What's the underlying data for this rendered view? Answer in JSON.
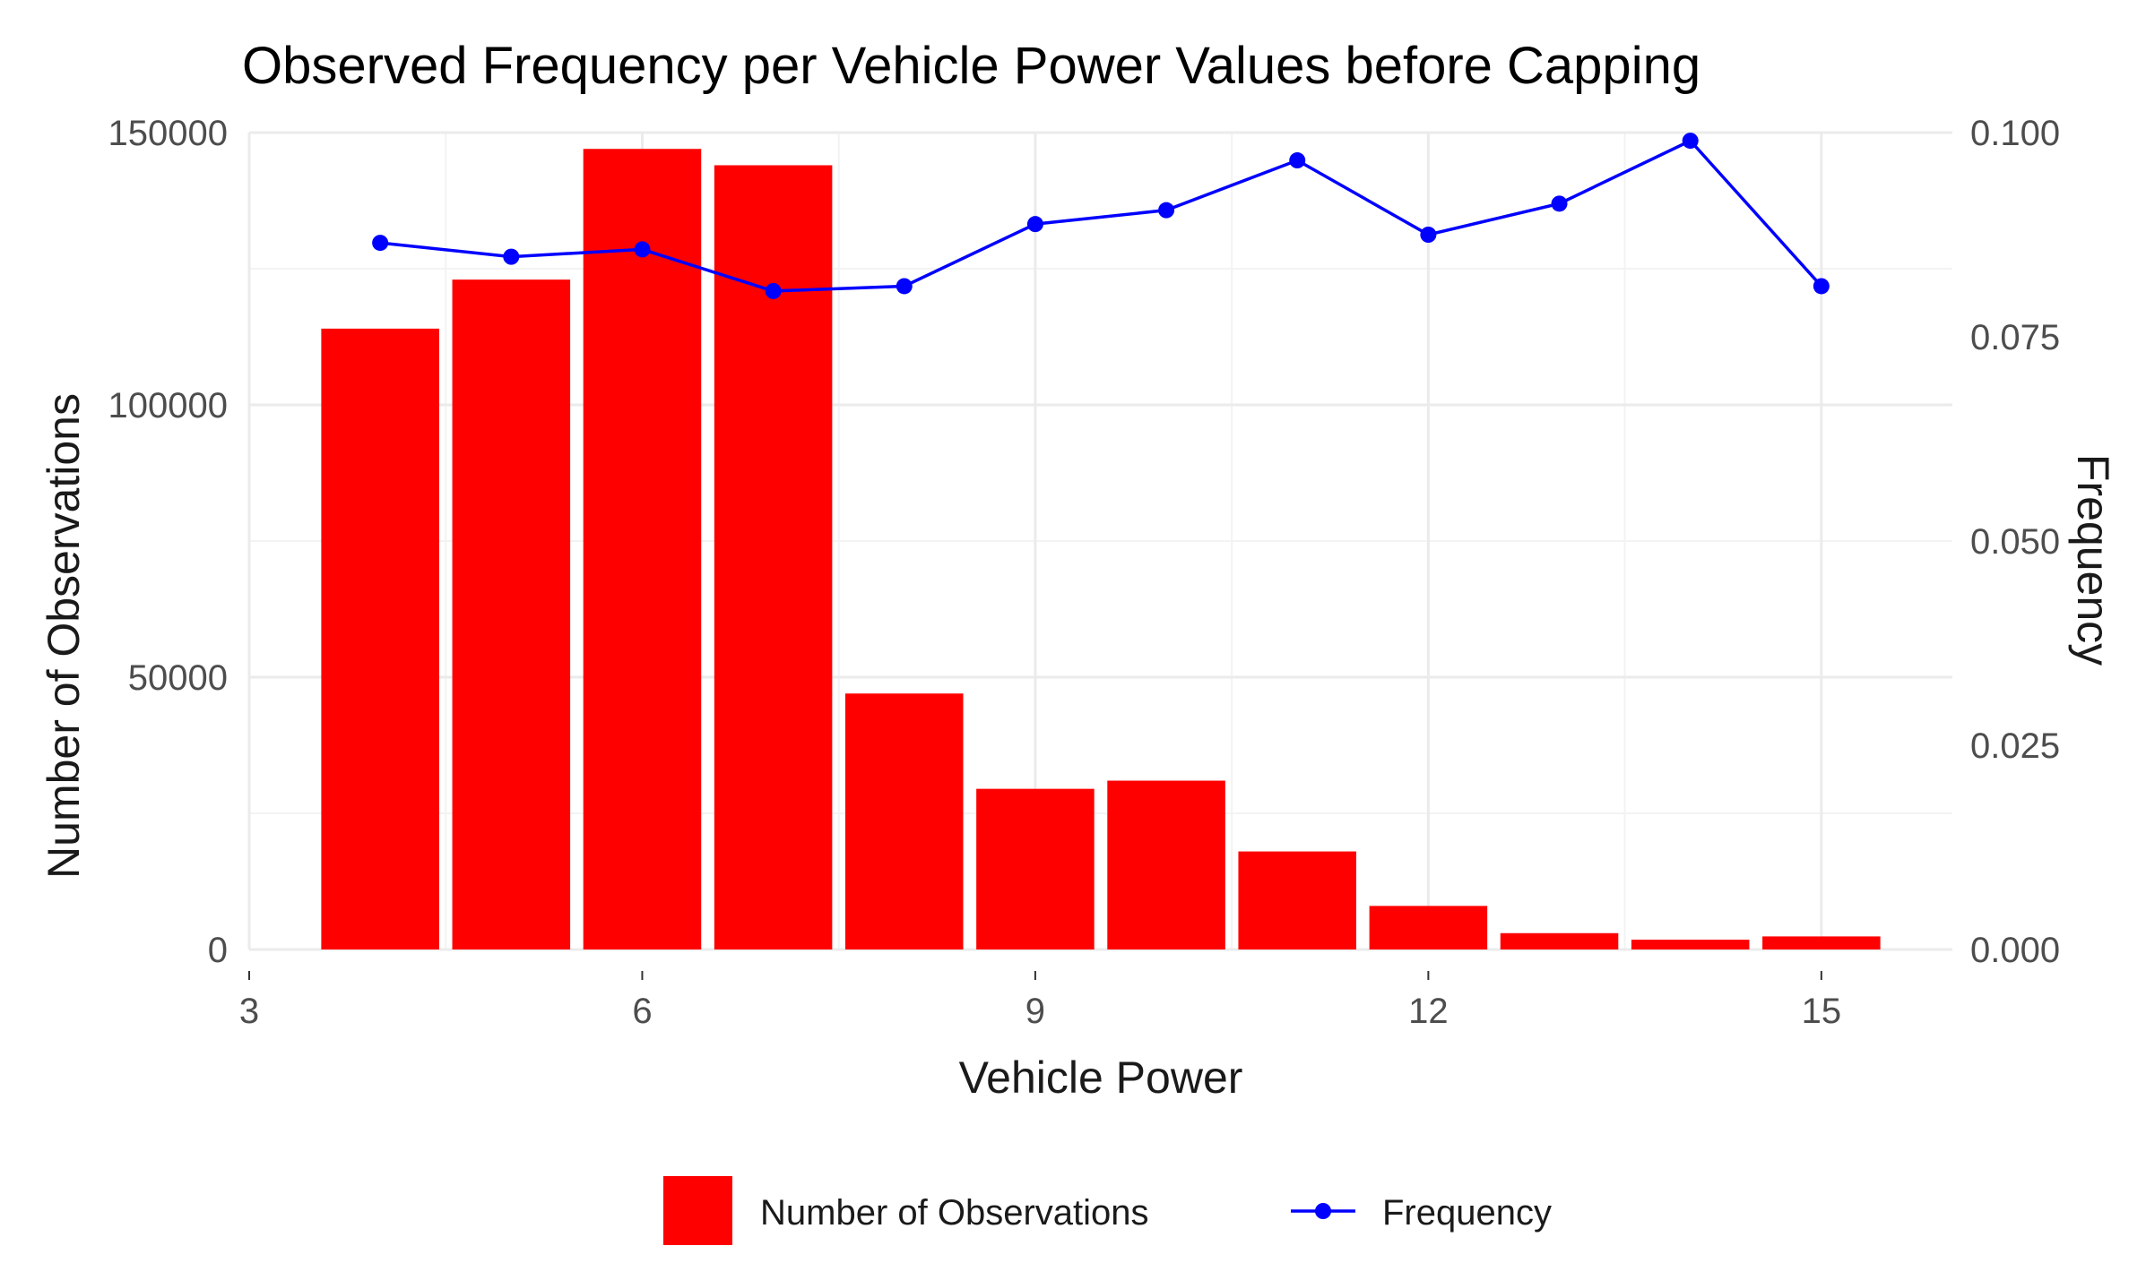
{
  "chart_data": {
    "type": "bar",
    "title": "Observed Frequency per Vehicle Power Values before Capping",
    "xlabel": "Vehicle Power",
    "ylabel": "Number of Observations",
    "y2label": "Frequency",
    "xlim": [
      3,
      16
    ],
    "ylim": [
      0,
      150000
    ],
    "y2lim": [
      0,
      0.1
    ],
    "x_ticks": [
      {
        "value": 3,
        "label": "3"
      },
      {
        "value": 6,
        "label": "6"
      },
      {
        "value": 9,
        "label": "9"
      },
      {
        "value": 12,
        "label": "12"
      },
      {
        "value": 15,
        "label": "15"
      }
    ],
    "y_ticks": [
      {
        "value": 0,
        "label": "0"
      },
      {
        "value": 50000,
        "label": "50000"
      },
      {
        "value": 100000,
        "label": "100000"
      },
      {
        "value": 150000,
        "label": "150000"
      }
    ],
    "y2_ticks": [
      {
        "value": 0,
        "label": "0.000"
      },
      {
        "value": 0.025,
        "label": "0.025"
      },
      {
        "value": 0.05,
        "label": "0.050"
      },
      {
        "value": 0.075,
        "label": "0.075"
      },
      {
        "value": 0.1,
        "label": "0.100"
      }
    ],
    "series": [
      {
        "name": "Number of Observations",
        "type": "bar",
        "axis": "left",
        "color": "#ff0000",
        "x": [
          4,
          5,
          6,
          7,
          8,
          9,
          10,
          11,
          12,
          13,
          14,
          15
        ],
        "values": [
          114000,
          123000,
          147000,
          144000,
          47000,
          29500,
          31000,
          18000,
          8000,
          3000,
          1800,
          2400
        ]
      },
      {
        "name": "Frequency",
        "type": "line",
        "axis": "right",
        "color": "#0000ff",
        "x": [
          4,
          5,
          6,
          7,
          8,
          9,
          10,
          11,
          12,
          13,
          14,
          15
        ],
        "values": [
          0.0865,
          0.0848,
          0.0857,
          0.0806,
          0.0812,
          0.0888,
          0.0905,
          0.0966,
          0.0875,
          0.0913,
          0.099,
          0.0812
        ]
      }
    ],
    "legend": {
      "position": "bottom",
      "items": [
        {
          "label": "Number of Observations",
          "kind": "bar",
          "color": "#ff0000"
        },
        {
          "label": "Frequency",
          "kind": "line-point",
          "color": "#0000ff"
        }
      ]
    }
  }
}
